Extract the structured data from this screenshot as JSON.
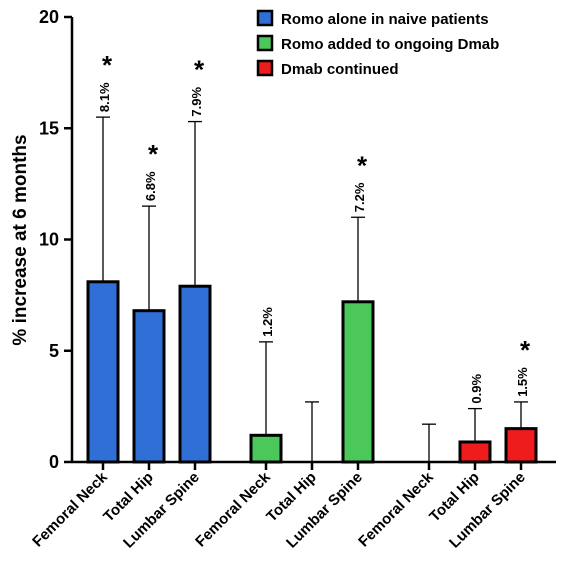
{
  "chart_data": {
    "type": "bar",
    "title": "",
    "xlabel": "",
    "ylabel": "% increase at 6 months",
    "ylim": [
      0,
      20
    ],
    "yticks": [
      "0",
      "5",
      "10",
      "15",
      "20"
    ],
    "grid": false,
    "legend_position": "top-right",
    "groups": [
      {
        "name": "Romo alone in naive patients",
        "color": "#2f6fd6",
        "categories": [
          "Femoral Neck",
          "Total Hip",
          "Lumbar Spine"
        ],
        "values": [
          8.1,
          6.8,
          7.9
        ],
        "error_upper": [
          15.5,
          11.5,
          15.3
        ],
        "labels": [
          "8.1%",
          "6.8%",
          "7.9%"
        ],
        "significant": [
          true,
          true,
          true
        ]
      },
      {
        "name": "Romo added to ongoing Dmab",
        "color": "#4cc85a",
        "categories": [
          "Femoral Neck",
          "Total Hip",
          "Lumbar Spine"
        ],
        "values": [
          1.2,
          0,
          7.2
        ],
        "error_upper": [
          5.4,
          2.7,
          11.0
        ],
        "labels": [
          "1.2%",
          "",
          "7.2%"
        ],
        "significant": [
          false,
          false,
          true
        ]
      },
      {
        "name": "Dmab continued",
        "color": "#ee1c1c",
        "categories": [
          "Femoral Neck",
          "Total Hip",
          "Lumbar Spine"
        ],
        "values": [
          0,
          0.9,
          1.5
        ],
        "error_upper": [
          1.7,
          2.4,
          2.7
        ],
        "labels": [
          "",
          "0.9%",
          "1.5%"
        ],
        "significant": [
          false,
          false,
          true
        ]
      }
    ],
    "significance_marker": "*"
  }
}
